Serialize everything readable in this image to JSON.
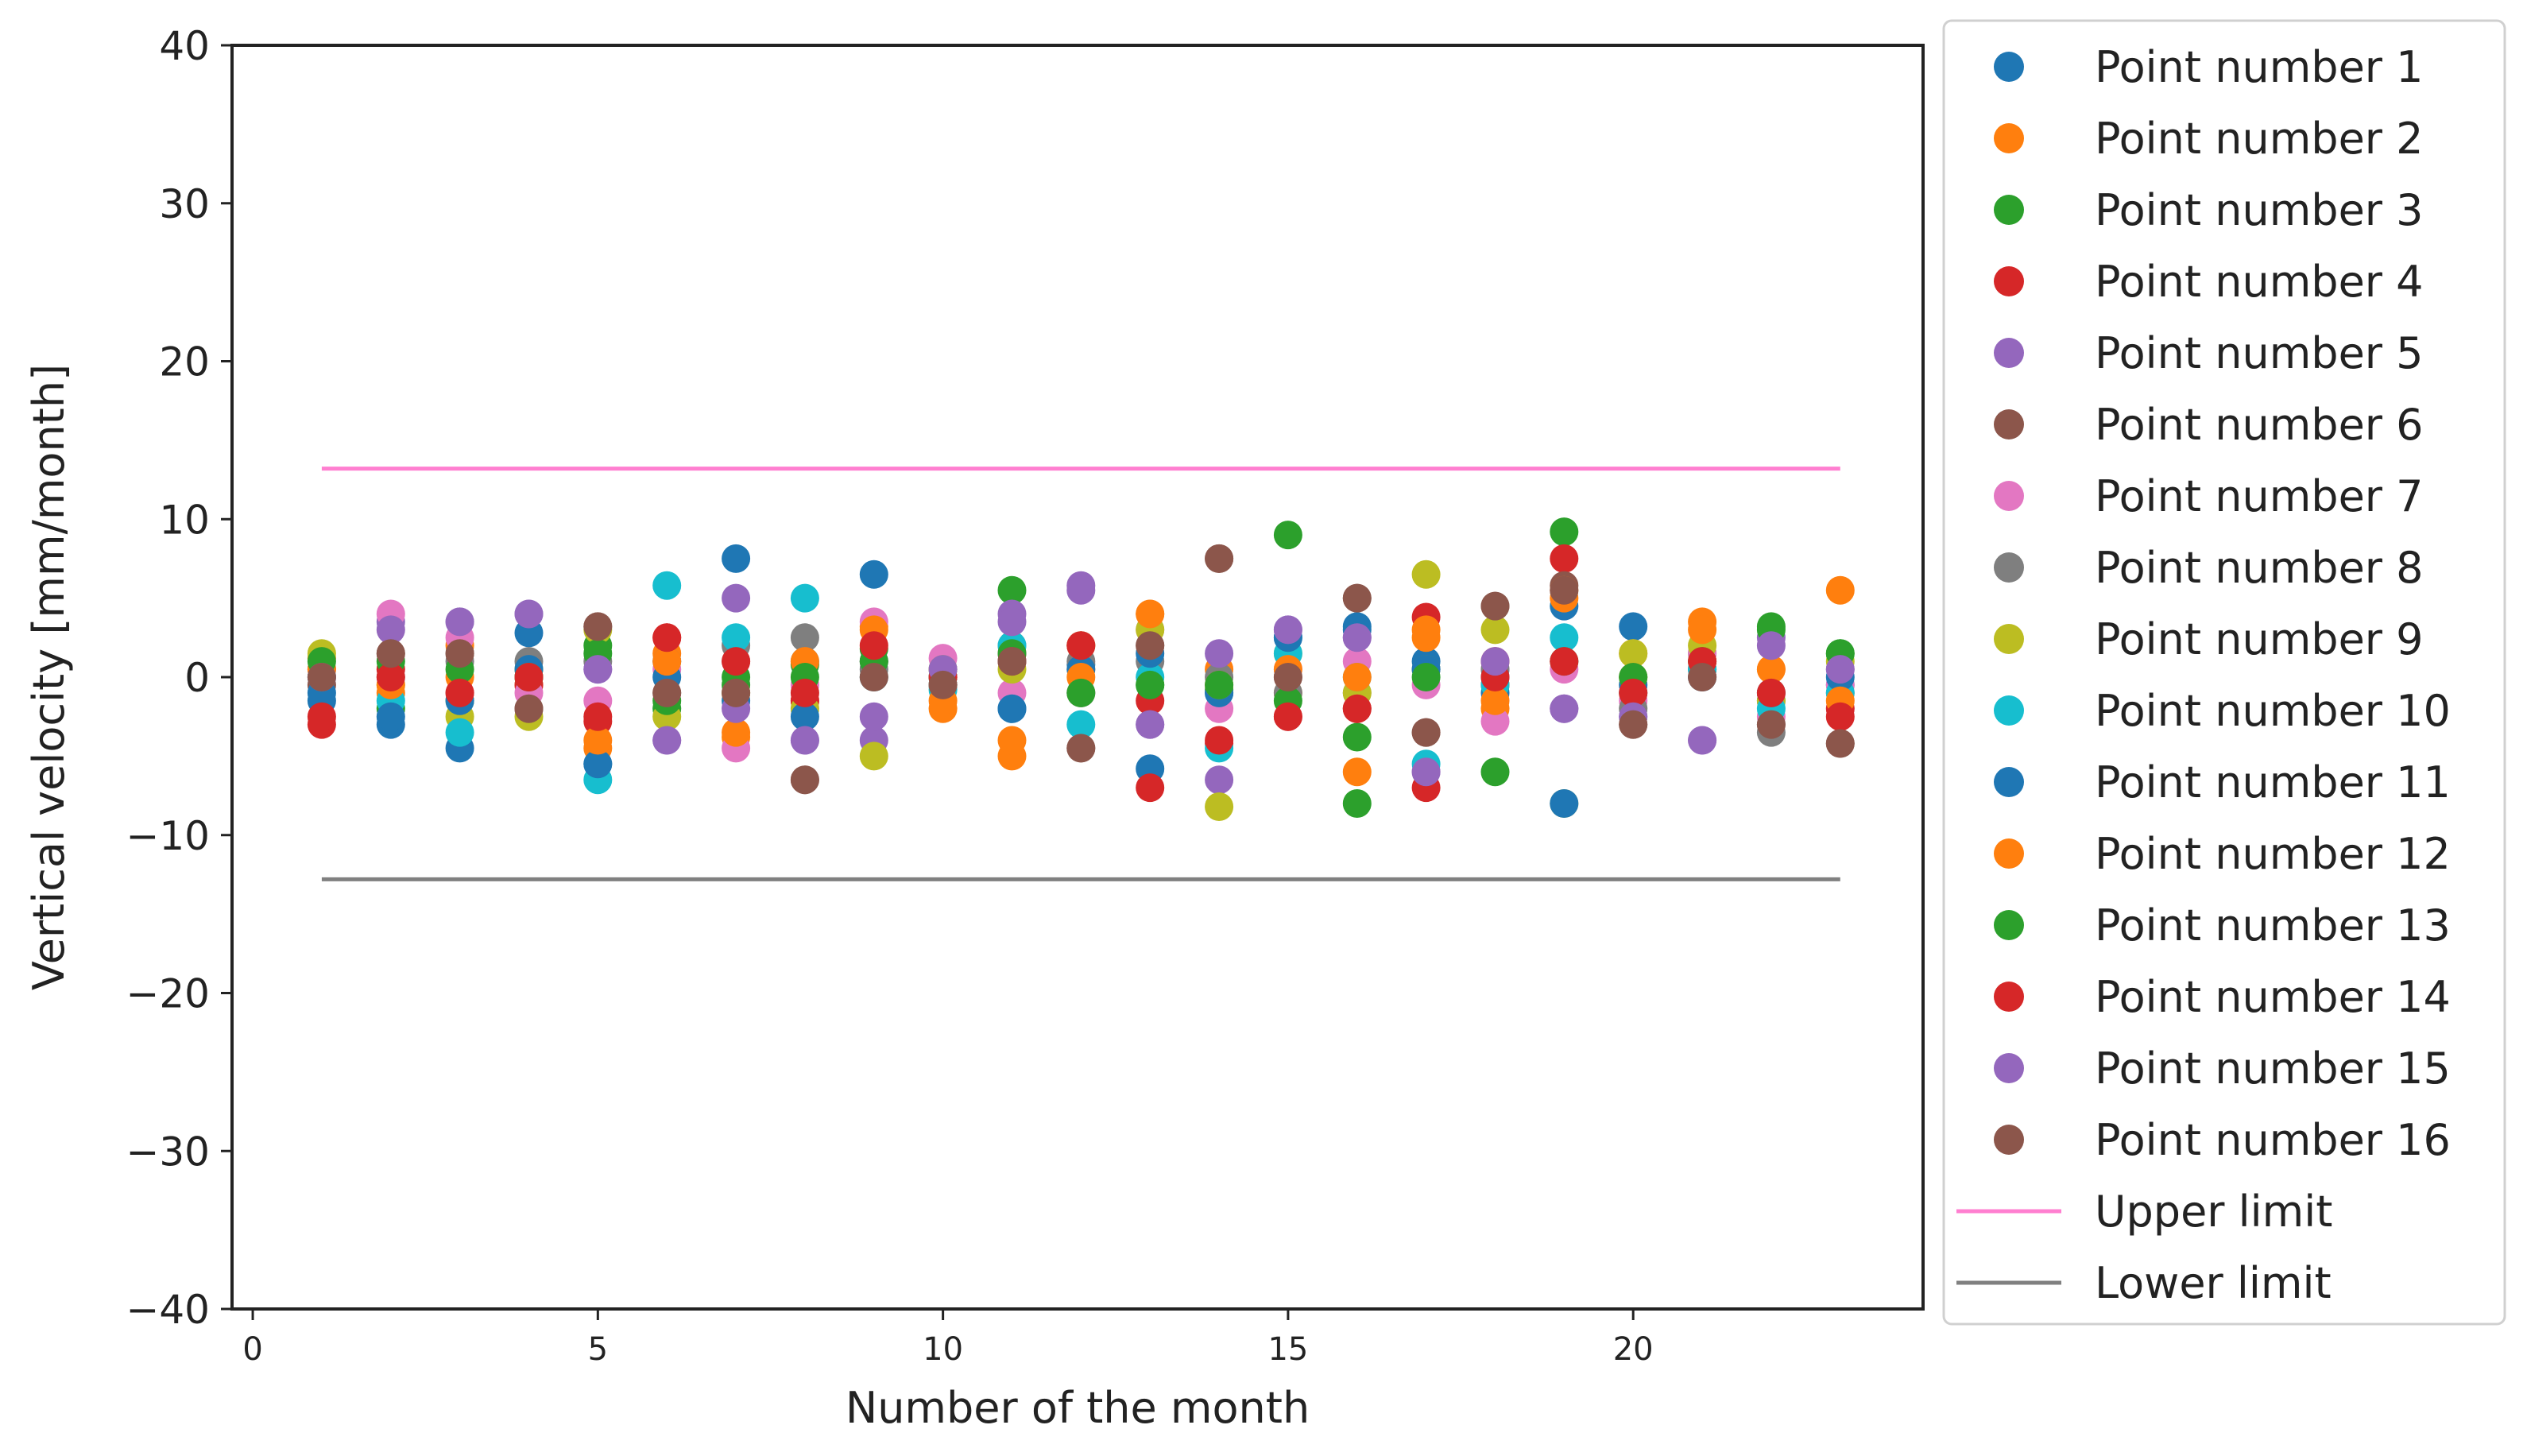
{
  "chart_data": {
    "type": "scatter",
    "title": "",
    "xlabel": "Number of the month",
    "ylabel": "Vertical velocity [mm/month]",
    "xlim": [
      -0.3,
      24.2
    ],
    "ylim": [
      -40,
      40
    ],
    "xticks": [
      0,
      5,
      10,
      15,
      20
    ],
    "yticks": [
      -40,
      -30,
      -20,
      -10,
      0,
      10,
      20,
      30,
      40
    ],
    "xtick_labels": [
      "0",
      "5",
      "10",
      "15",
      "20"
    ],
    "ytick_labels": [
      "−40",
      "−30",
      "−20",
      "−10",
      "0",
      "10",
      "20",
      "30",
      "40"
    ],
    "grid": false,
    "legend_position": "outside-right",
    "x": [
      1,
      2,
      3,
      4,
      5,
      6,
      7,
      8,
      9,
      10,
      11,
      12,
      13,
      14,
      15,
      16,
      17,
      18,
      19,
      20,
      21,
      22,
      23
    ],
    "series": [
      {
        "name": "Point number 1",
        "color": "#1f77b4",
        "values": [
          -1.5,
          -3.0,
          -4.5,
          2.8,
          -5.5,
          1.0,
          7.5,
          1.0,
          6.5,
          0.5,
          -2.0,
          0.8,
          -5.8,
          -1.0,
          2.5,
          3.0,
          1.0,
          -1.0,
          4.5,
          3.2,
          0.5,
          -1.5,
          -0.5
        ]
      },
      {
        "name": "Point number 2",
        "color": "#ff7f0e",
        "values": [
          1.2,
          -1.0,
          2.0,
          -0.5,
          -4.5,
          1.5,
          -3.8,
          -1.5,
          3.2,
          -2.0,
          -5.0,
          0.5,
          4.0,
          0.5,
          -1.0,
          -6.0,
          2.5,
          -2.0,
          5.0,
          1.5,
          3.5,
          0.5,
          5.5
        ]
      },
      {
        "name": "Point number 3",
        "color": "#2ca02c",
        "values": [
          0.5,
          -2.0,
          -1.5,
          0.5,
          2.0,
          -2.0,
          -0.5,
          0.8,
          1.8,
          -0.5,
          5.5,
          -1.0,
          -0.5,
          -0.8,
          9.0,
          -3.8,
          0.5,
          -0.5,
          9.2,
          0.0,
          1.5,
          3.2,
          1.5
        ]
      },
      {
        "name": "Point number 4",
        "color": "#d62728",
        "values": [
          -3.0,
          0.5,
          -1.0,
          -0.5,
          -2.8,
          2.5,
          1.0,
          -1.5,
          1.0,
          0.0,
          1.5,
          2.0,
          -1.5,
          -4.2,
          -2.5,
          -2.0,
          3.8,
          1.0,
          7.5,
          -1.0,
          1.0,
          -1.0,
          -2.0
        ]
      },
      {
        "name": "Point number 5",
        "color": "#9467bd",
        "values": [
          0.0,
          3.5,
          3.5,
          4.0,
          0.5,
          -4.0,
          5.0,
          -4.0,
          -4.0,
          0.5,
          4.0,
          5.8,
          -3.0,
          -6.5,
          3.0,
          2.5,
          -6.0,
          0.5,
          -2.0,
          -2.5,
          -4.0,
          2.5,
          0.5
        ]
      },
      {
        "name": "Point number 6",
        "color": "#8c564b",
        "values": [
          -0.5,
          1.5,
          1.5,
          -2.0,
          3.2,
          -1.0,
          -1.0,
          -6.5,
          0.0,
          -0.5,
          1.0,
          -4.5,
          2.0,
          7.5,
          0.0,
          5.0,
          -3.5,
          4.5,
          5.8,
          -3.0,
          0.0,
          -3.0,
          -4.2
        ]
      },
      {
        "name": "Point number 7",
        "color": "#e377c2",
        "values": [
          0.5,
          4.0,
          2.5,
          -1.0,
          -1.5,
          0.5,
          -4.5,
          -0.5,
          3.5,
          1.2,
          -1.0,
          -1.0,
          3.0,
          -2.0,
          0.5,
          1.0,
          -0.5,
          -2.8,
          0.5,
          -1.5,
          1.5,
          -2.5,
          -0.5
        ]
      },
      {
        "name": "Point number 8",
        "color": "#7f7f7f",
        "values": [
          0.0,
          0.0,
          1.0,
          1.0,
          1.0,
          1.0,
          2.0,
          2.5,
          0.5,
          -0.5,
          2.0,
          1.0,
          1.0,
          0.0,
          -1.0,
          -1.0,
          0.5,
          0.5,
          1.0,
          -2.0,
          0.5,
          -3.5,
          -1.0
        ]
      },
      {
        "name": "Point number 9",
        "color": "#bcbd22",
        "values": [
          1.5,
          -0.5,
          -2.5,
          -2.5,
          3.0,
          -2.5,
          -1.0,
          -2.0,
          -5.0,
          0.5,
          0.5,
          2.0,
          3.0,
          -8.2,
          1.5,
          -1.0,
          6.5,
          3.0,
          -8.0,
          1.5,
          2.0,
          -1.5,
          1.0
        ]
      },
      {
        "name": "Point number 10",
        "color": "#17becf",
        "values": [
          0.0,
          -1.5,
          -3.5,
          0.0,
          -6.5,
          5.8,
          2.5,
          5.0,
          0.0,
          -0.8,
          2.0,
          -3.0,
          0.0,
          -4.5,
          1.5,
          0.0,
          -5.5,
          -0.5,
          2.5,
          -1.0,
          0.5,
          -2.0,
          -1.0
        ]
      },
      {
        "name": "Point number 11",
        "color": "#1f77b4",
        "values": [
          -1.0,
          -2.5,
          -1.5,
          0.5,
          -5.5,
          0.0,
          -1.5,
          -2.5,
          1.0,
          0.0,
          -2.0,
          0.5,
          1.5,
          -1.0,
          2.5,
          3.2,
          0.5,
          0.0,
          -8.0,
          -0.5,
          0.0,
          -1.0,
          0.0
        ]
      },
      {
        "name": "Point number 12",
        "color": "#ff7f0e",
        "values": [
          0.5,
          -0.5,
          0.0,
          0.0,
          -4.0,
          1.0,
          -3.5,
          1.0,
          3.0,
          -1.5,
          -4.0,
          0.0,
          4.0,
          -0.5,
          0.5,
          0.0,
          3.0,
          -1.5,
          5.5,
          0.0,
          3.0,
          0.5,
          -1.5
        ]
      },
      {
        "name": "Point number 13",
        "color": "#2ca02c",
        "values": [
          1.0,
          1.0,
          0.5,
          0.0,
          1.5,
          -1.5,
          0.0,
          0.0,
          1.0,
          0.0,
          1.5,
          -1.0,
          -0.5,
          -0.5,
          -1.5,
          -8.0,
          0.0,
          -6.0,
          1.0,
          0.0,
          1.0,
          3.0,
          1.5
        ]
      },
      {
        "name": "Point number 14",
        "color": "#d62728",
        "values": [
          -2.5,
          0.0,
          -1.0,
          0.0,
          -2.5,
          2.5,
          1.0,
          -1.0,
          2.0,
          0.0,
          1.0,
          2.0,
          -7.0,
          -4.0,
          -2.5,
          -2.0,
          -7.0,
          0.0,
          1.0,
          -1.0,
          1.0,
          -1.0,
          -2.5
        ]
      },
      {
        "name": "Point number 15",
        "color": "#9467bd",
        "values": [
          0.0,
          3.0,
          3.5,
          4.0,
          0.5,
          -4.0,
          -2.0,
          -4.0,
          -2.5,
          0.5,
          3.5,
          5.5,
          -3.0,
          1.5,
          3.0,
          2.5,
          -6.0,
          1.0,
          -2.0,
          -2.5,
          -4.0,
          2.0,
          0.5
        ]
      },
      {
        "name": "Point number 16",
        "color": "#8c564b",
        "values": [
          0.0,
          1.5,
          1.5,
          -2.0,
          3.2,
          -1.0,
          -1.0,
          -6.5,
          0.0,
          -0.5,
          1.0,
          -4.5,
          2.0,
          7.5,
          0.0,
          5.0,
          -3.5,
          4.5,
          5.5,
          -3.0,
          0.0,
          -3.0,
          -4.2
        ]
      }
    ],
    "reference_lines": [
      {
        "name": "Upper limit",
        "color": "#ff7fd0",
        "y": 13.2,
        "x_range": [
          1,
          23
        ]
      },
      {
        "name": "Lower limit",
        "color": "#808080",
        "y": -12.8,
        "x_range": [
          1,
          23
        ]
      }
    ]
  }
}
